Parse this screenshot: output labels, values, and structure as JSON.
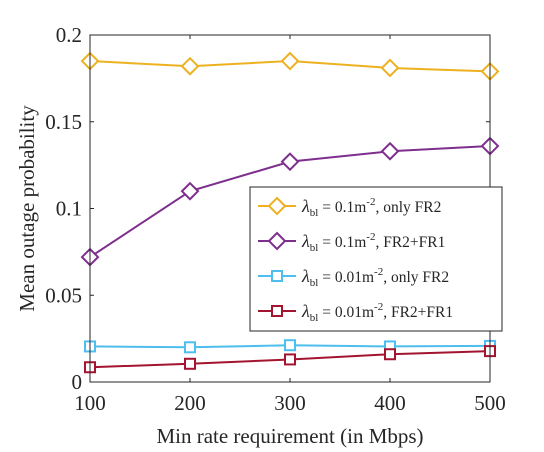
{
  "chart_data": {
    "type": "line",
    "x": [
      100,
      200,
      300,
      400,
      500
    ],
    "xlabel": "Min rate requirement (in Mbps)",
    "ylabel": "Mean outage probability",
    "xlim": [
      100,
      500
    ],
    "ylim": [
      0,
      0.2
    ],
    "xticks": [
      "100",
      "200",
      "300",
      "400",
      "500"
    ],
    "yticks": [
      "0",
      "0.05",
      "0.1",
      "0.15",
      "0.2"
    ],
    "grid": false,
    "legend_position": "right",
    "lambda_symbol": "λ",
    "lambda_subscript": "bl",
    "series": [
      {
        "name": "λbl = 0.1m-2, only FR2",
        "legend": {
          "value": " = 0.1m",
          "exp": "-2",
          "suffix": ", only FR2"
        },
        "marker": "diamond",
        "color": "#EDB120",
        "values": [
          0.185,
          0.182,
          0.185,
          0.181,
          0.179
        ]
      },
      {
        "name": "λbl = 0.1m-2, FR2+FR1",
        "legend": {
          "value": " = 0.1m",
          "exp": "-2",
          "suffix": ", FR2+FR1"
        },
        "marker": "diamond",
        "color": "#7E2F8E",
        "values": [
          0.072,
          0.11,
          0.127,
          0.133,
          0.136
        ]
      },
      {
        "name": "λbl = 0.01m-2, only FR2",
        "legend": {
          "value": " = 0.01m",
          "exp": "-2",
          "suffix": ", only FR2"
        },
        "marker": "square",
        "color": "#4DBEEE",
        "values": [
          0.0205,
          0.02,
          0.0212,
          0.0205,
          0.0208
        ]
      },
      {
        "name": "λbl = 0.01m-2, FR2+FR1",
        "legend": {
          "value": " = 0.01m",
          "exp": "-2",
          "suffix": ", FR2+FR1"
        },
        "marker": "square",
        "color": "#A2142F",
        "values": [
          0.0085,
          0.0105,
          0.013,
          0.016,
          0.0178
        ]
      }
    ]
  }
}
